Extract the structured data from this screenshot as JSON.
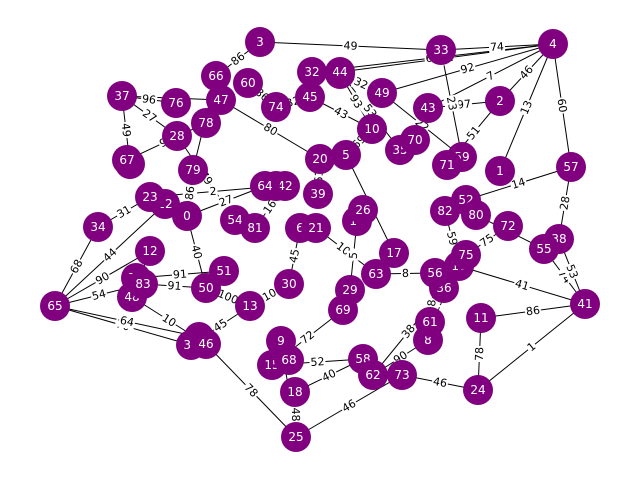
{
  "graph": {
    "node_color": "#800080",
    "label_color": "#ffffff",
    "edge_color": "#000000",
    "nodes": [
      "0",
      "1",
      "2",
      "3",
      "4",
      "5",
      "6",
      "8",
      "9",
      "10",
      "11",
      "12",
      "13",
      "14",
      "15",
      "16",
      "17",
      "18",
      "19",
      "20",
      "21",
      "22",
      "23",
      "24",
      "25",
      "26",
      "27",
      "28",
      "29",
      "30",
      "31",
      "32",
      "33",
      "34",
      "35",
      "36",
      "37",
      "38",
      "39",
      "40",
      "41",
      "42",
      "43",
      "44",
      "45",
      "46",
      "47",
      "48",
      "49",
      "50",
      "51",
      "52",
      "53",
      "54",
      "55",
      "56",
      "57",
      "58",
      "59",
      "60",
      "61",
      "62",
      "63",
      "64",
      "65",
      "66",
      "67",
      "68",
      "69",
      "70",
      "71",
      "72",
      "73",
      "74",
      "75",
      "76",
      "77",
      "78",
      "79",
      "80",
      "81",
      "82",
      "83"
    ],
    "edges": [
      {
        "s": "3",
        "t": "33",
        "w": "49"
      },
      {
        "s": "33",
        "t": "4",
        "w": "74"
      },
      {
        "s": "3",
        "t": "66",
        "w": "86"
      },
      {
        "s": "37",
        "t": "76",
        "w": "96"
      },
      {
        "s": "37",
        "t": "47",
        "w": "70"
      },
      {
        "s": "32",
        "t": "4",
        "w": "63"
      },
      {
        "s": "44",
        "t": "4",
        "w": "42"
      },
      {
        "s": "4",
        "t": "2",
        "w": "46"
      },
      {
        "s": "4",
        "t": "49",
        "w": "92"
      },
      {
        "s": "4",
        "t": "57",
        "w": "60"
      },
      {
        "s": "4",
        "t": "1",
        "w": "13"
      },
      {
        "s": "4",
        "t": "43",
        "w": "7"
      },
      {
        "s": "2",
        "t": "71",
        "w": "51"
      },
      {
        "s": "2",
        "t": "43",
        "w": "97"
      },
      {
        "s": "37",
        "t": "28",
        "w": "27"
      },
      {
        "s": "37",
        "t": "53",
        "w": "49"
      },
      {
        "s": "65",
        "t": "34",
        "w": "68"
      },
      {
        "s": "65",
        "t": "12",
        "w": "90"
      },
      {
        "s": "65",
        "t": "83",
        "w": "54"
      },
      {
        "s": "65",
        "t": "31",
        "w": "70"
      },
      {
        "s": "65",
        "t": "19",
        "w": "64"
      },
      {
        "s": "65",
        "t": "22",
        "w": "44"
      },
      {
        "s": "25",
        "t": "18",
        "w": "48"
      },
      {
        "s": "25",
        "t": "9",
        "w": "33"
      },
      {
        "s": "25",
        "t": "73",
        "w": "46"
      },
      {
        "s": "25",
        "t": "46",
        "w": "78"
      },
      {
        "s": "24",
        "t": "41",
        "w": "1"
      },
      {
        "s": "24",
        "t": "73",
        "w": "46"
      },
      {
        "s": "24",
        "t": "11",
        "w": "78"
      },
      {
        "s": "41",
        "t": "11",
        "w": "86"
      },
      {
        "s": "41",
        "t": "55",
        "w": "74"
      },
      {
        "s": "41",
        "t": "38",
        "w": "53"
      },
      {
        "s": "41",
        "t": "16",
        "w": "41"
      },
      {
        "s": "57",
        "t": "38",
        "w": "28"
      },
      {
        "s": "57",
        "t": "52",
        "w": "14"
      },
      {
        "s": "0",
        "t": "50",
        "w": "40"
      },
      {
        "s": "0",
        "t": "79",
        "w": "86"
      },
      {
        "s": "50",
        "t": "13",
        "w": "100"
      },
      {
        "s": "13",
        "t": "30",
        "w": "10"
      },
      {
        "s": "30",
        "t": "6",
        "w": "45"
      },
      {
        "s": "29",
        "t": "69",
        "w": "82"
      },
      {
        "s": "8",
        "t": "62",
        "w": "90"
      },
      {
        "s": "9",
        "t": "68",
        "w": "96"
      },
      {
        "s": "15",
        "t": "58",
        "w": "52"
      },
      {
        "s": "74",
        "t": "45",
        "w": "32"
      },
      {
        "s": "45",
        "t": "10",
        "w": "43"
      },
      {
        "s": "10",
        "t": "5",
        "w": "69"
      },
      {
        "s": "5",
        "t": "17",
        "w": "94"
      },
      {
        "s": "20",
        "t": "39",
        "w": "61"
      },
      {
        "s": "42",
        "t": "81",
        "w": "16"
      },
      {
        "s": "26",
        "t": "14",
        "w": "58"
      },
      {
        "s": "75",
        "t": "72",
        "w": "75"
      },
      {
        "s": "80",
        "t": "55",
        "w": "28"
      },
      {
        "s": "82",
        "t": "16",
        "w": "59"
      },
      {
        "s": "70",
        "t": "35",
        "w": "35"
      },
      {
        "s": "54",
        "t": "28",
        "w": "79"
      },
      {
        "s": "12",
        "t": "48",
        "w": "30"
      },
      {
        "s": "77",
        "t": "51",
        "w": "91"
      },
      {
        "s": "19",
        "t": "46",
        "w": "94"
      },
      {
        "s": "23",
        "t": "40",
        "w": "2"
      },
      {
        "s": "49",
        "t": "59",
        "w": "22"
      },
      {
        "s": "36",
        "t": "61",
        "w": "29"
      },
      {
        "s": "67",
        "t": "78",
        "w": "99"
      },
      {
        "s": "60",
        "t": "74",
        "w": "86"
      },
      {
        "s": "21",
        "t": "63",
        "w": "100"
      },
      {
        "s": "56",
        "t": "8",
        "w": "38"
      },
      {
        "s": "27",
        "t": "10",
        "w": "93"
      },
      {
        "s": "33",
        "t": "59",
        "w": "23"
      },
      {
        "s": "64",
        "t": "0",
        "w": "27"
      },
      {
        "s": "31",
        "t": "13",
        "w": "45"
      },
      {
        "s": "34",
        "t": "23",
        "w": "31"
      },
      {
        "s": "66",
        "t": "79",
        "w": "89"
      },
      {
        "s": "47",
        "t": "20",
        "w": "80"
      },
      {
        "s": "44",
        "t": "35",
        "w": "53"
      },
      {
        "s": "27",
        "t": "49",
        "w": "32"
      },
      {
        "s": "62",
        "t": "36",
        "w": "38"
      },
      {
        "s": "69",
        "t": "15",
        "w": "72"
      },
      {
        "s": "18",
        "t": "58",
        "w": "40"
      },
      {
        "s": "61",
        "t": "16",
        "w": "86"
      },
      {
        "s": "83",
        "t": "50",
        "w": "91"
      },
      {
        "s": "48",
        "t": "46",
        "w": "10"
      },
      {
        "s": "52",
        "t": "82",
        "w": "39"
      },
      {
        "s": "63",
        "t": "56",
        "w": "8"
      },
      {
        "s": "14",
        "t": "29",
        "w": "5"
      }
    ]
  }
}
